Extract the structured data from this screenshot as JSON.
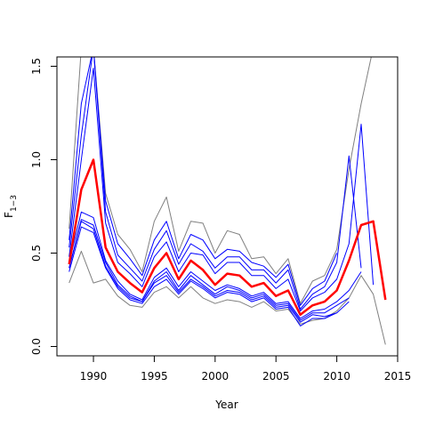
{
  "chart_data": {
    "type": "line",
    "xlabel": "Year",
    "ylabel_main": "F",
    "ylabel_sub": "1−3",
    "xlim": [
      1987,
      2015
    ],
    "ylim": [
      -0.05,
      1.55
    ],
    "xticks": [
      1990,
      1995,
      2000,
      2005,
      2010,
      2015
    ],
    "yticks": [
      0.0,
      0.5,
      1.0,
      1.5
    ],
    "ytick_labels": [
      "0.0",
      "0.5",
      "1.0",
      "1.5"
    ],
    "colors": {
      "median": "#ff0000",
      "quantile": "#0000ff",
      "bound": "#808080"
    },
    "x": [
      1988,
      1989,
      1990,
      1991,
      1992,
      1993,
      1994,
      1995,
      1996,
      1997,
      1998,
      1999,
      2000,
      2001,
      2002,
      2003,
      2004,
      2005,
      2006,
      2007,
      2008,
      2009,
      2010,
      2011,
      2012,
      2013,
      2014
    ],
    "series": [
      {
        "role": "bound",
        "values": [
          0.34,
          0.51,
          0.34,
          0.36,
          0.27,
          0.22,
          0.21,
          0.29,
          0.32,
          0.26,
          0.32,
          0.26,
          0.23,
          0.25,
          0.24,
          0.21,
          0.24,
          0.19,
          0.2,
          0.12,
          0.14,
          0.15,
          0.19,
          0.26,
          0.38,
          0.28,
          0.01
        ]
      },
      {
        "role": "quantile",
        "values": [
          0.4,
          0.64,
          0.61,
          0.42,
          0.31,
          0.25,
          0.23,
          0.32,
          0.36,
          0.28,
          0.35,
          0.31,
          0.26,
          0.29,
          0.28,
          0.24,
          0.26,
          0.2,
          0.21,
          0.11,
          0.15,
          0.15,
          0.18,
          null,
          null,
          null,
          null
        ]
      },
      {
        "role": "quantile",
        "values": [
          0.42,
          0.67,
          0.63,
          0.43,
          0.32,
          0.26,
          0.24,
          0.34,
          0.38,
          0.29,
          0.36,
          0.32,
          0.27,
          0.3,
          0.29,
          0.25,
          0.27,
          0.21,
          0.22,
          0.13,
          0.17,
          0.16,
          0.18,
          0.24,
          null,
          null,
          null
        ]
      },
      {
        "role": "quantile",
        "values": [
          0.42,
          0.68,
          0.65,
          0.45,
          0.33,
          0.27,
          0.24,
          0.35,
          0.4,
          0.3,
          0.38,
          0.33,
          0.28,
          0.32,
          0.3,
          0.26,
          0.28,
          0.22,
          0.23,
          0.14,
          0.18,
          0.18,
          0.22,
          0.26,
          null,
          null,
          null
        ]
      },
      {
        "role": "quantile",
        "values": [
          0.45,
          0.72,
          0.69,
          0.46,
          0.35,
          0.28,
          0.25,
          0.37,
          0.42,
          0.32,
          0.4,
          0.35,
          0.3,
          0.33,
          0.31,
          0.27,
          0.29,
          0.23,
          0.24,
          0.15,
          0.19,
          0.2,
          0.24,
          0.3,
          0.4,
          null,
          null
        ]
      },
      {
        "role": "median",
        "values": [
          0.44,
          0.84,
          1.0,
          0.53,
          0.4,
          0.34,
          0.29,
          0.42,
          0.5,
          0.36,
          0.46,
          0.41,
          0.33,
          0.39,
          0.38,
          0.32,
          0.34,
          0.27,
          0.3,
          0.17,
          0.22,
          0.24,
          0.3,
          0.46,
          0.65,
          0.67,
          0.25
        ]
      },
      {
        "role": "quantile",
        "values": [
          0.48,
          1.0,
          1.49,
          0.66,
          0.45,
          0.39,
          0.32,
          0.48,
          0.56,
          0.4,
          0.5,
          0.49,
          0.39,
          0.45,
          0.45,
          0.38,
          0.38,
          0.31,
          0.36,
          0.19,
          0.26,
          0.29,
          0.36,
          0.55,
          1.19,
          0.33,
          null
        ]
      },
      {
        "role": "quantile",
        "values": [
          0.53,
          1.13,
          1.6,
          0.72,
          0.49,
          0.42,
          0.35,
          0.52,
          0.62,
          0.44,
          0.55,
          0.51,
          0.42,
          0.48,
          0.48,
          0.41,
          0.41,
          0.34,
          0.41,
          0.2,
          0.28,
          0.32,
          0.45,
          1.02,
          0.42,
          null,
          null
        ]
      },
      {
        "role": "quantile",
        "values": [
          0.57,
          1.3,
          1.6,
          0.78,
          0.55,
          0.47,
          0.38,
          0.57,
          0.67,
          0.47,
          0.6,
          0.57,
          0.47,
          0.52,
          0.51,
          0.45,
          0.43,
          0.37,
          0.44,
          0.22,
          0.31,
          0.35,
          0.5,
          null,
          null,
          null,
          null
        ]
      },
      {
        "role": "bound",
        "values": [
          0.63,
          1.6,
          1.6,
          0.82,
          0.6,
          0.52,
          0.4,
          0.67,
          0.8,
          0.51,
          0.67,
          0.66,
          0.5,
          0.62,
          0.6,
          0.47,
          0.48,
          0.39,
          0.47,
          0.23,
          0.35,
          0.38,
          0.52,
          0.95,
          1.3,
          1.6,
          null
        ]
      }
    ]
  }
}
